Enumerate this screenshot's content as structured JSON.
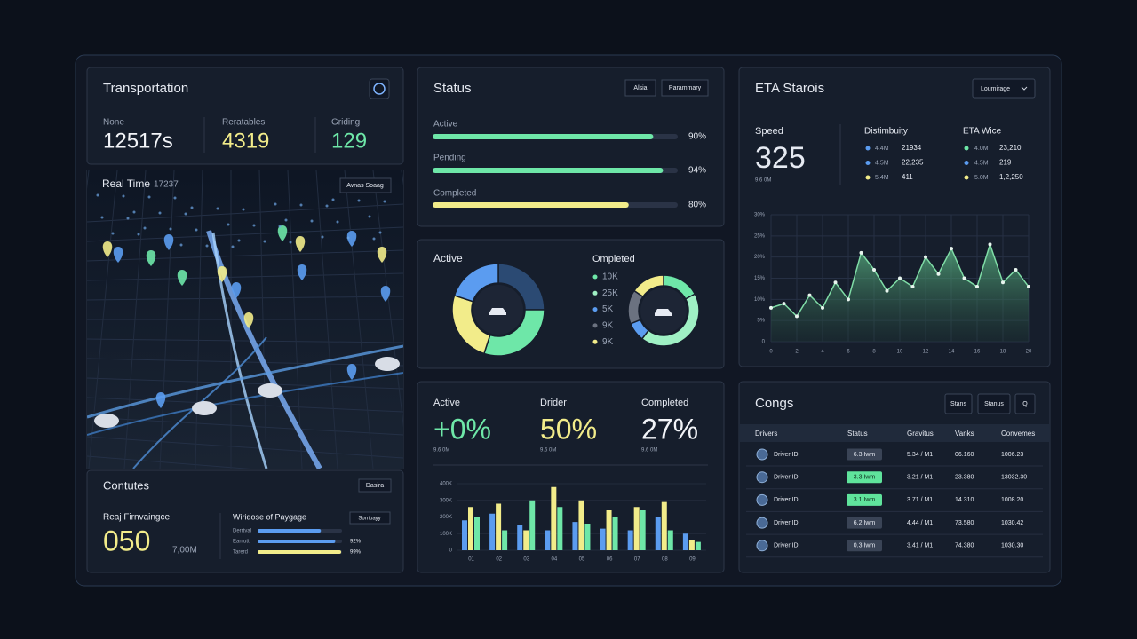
{
  "transport": {
    "title": "Transportation",
    "stats": [
      {
        "label": "None",
        "value": "12517s"
      },
      {
        "label": "Reratables",
        "value": "4319"
      },
      {
        "label": "Griding",
        "value": "129"
      }
    ]
  },
  "map": {
    "title": "Real Time",
    "value": "17237",
    "button": "Avnas Soaag"
  },
  "contutes": {
    "title": "Contutes",
    "button": "Dasira",
    "metric_label": "Reaj Firnvaingce",
    "metric": "050",
    "unit": "7,00M",
    "bars_title": "Wiridose of Paygage",
    "bars_button": "Sorribayy",
    "bars": {
      "type": "bar",
      "categories": [
        "Derrtval",
        "Eanlutt",
        "Tarerd"
      ],
      "values": [
        75,
        92,
        99
      ],
      "value_labels": [
        null,
        "92%",
        "99%"
      ],
      "colors": [
        "#5b9cf0",
        "#5b9cf0",
        "#f2ec8a"
      ],
      "xlim": [
        0,
        100
      ]
    }
  },
  "status": {
    "title": "Status",
    "buttons": [
      "Alsia",
      "Parammary"
    ],
    "bars": {
      "type": "bar",
      "categories": [
        "Active",
        "Pending",
        "Completed"
      ],
      "values": [
        90,
        94,
        80
      ],
      "value_labels": [
        "90%",
        "94%",
        "80%"
      ],
      "colors": [
        "#6ee7a8",
        "#6ee7a8",
        "#f2ec8a"
      ],
      "xlim": [
        0,
        100
      ]
    }
  },
  "donuts": [
    {
      "type": "pie",
      "title": "Active",
      "values": [
        25,
        30,
        25,
        20
      ],
      "colors": [
        "#2b4a73",
        "#6ee7a8",
        "#f2ec8a",
        "#5b9cf0"
      ]
    },
    {
      "type": "pie",
      "title": "Ompleted",
      "values": [
        10,
        25,
        5,
        9,
        9
      ],
      "value_labels": [
        "10K",
        "25K",
        "5K",
        "9K",
        "9K"
      ],
      "colors": [
        "#6ee7a8",
        "#9ff0c4",
        "#5b9cf0",
        "#6b7280",
        "#f2ec8a"
      ]
    }
  ],
  "kpis": [
    {
      "label": "Active",
      "value": "+0%",
      "sub": "9.6 0M",
      "color": "#6ee7a8"
    },
    {
      "label": "Drider",
      "value": "50%",
      "sub": "9.6 0M",
      "color": "#f2ec8a"
    },
    {
      "label": "Completed",
      "value": "27%",
      "sub": "9.6 0M",
      "color": "#f2f4f8"
    }
  ],
  "volume": {
    "type": "bar",
    "categories": [
      "01",
      "02",
      "03",
      "04",
      "05",
      "06",
      "07",
      "08",
      "09"
    ],
    "series": [
      {
        "color": "#5b9cf0",
        "values": [
          180,
          220,
          150,
          120,
          170,
          130,
          120,
          200,
          100
        ]
      },
      {
        "color": "#f2ec8a",
        "values": [
          260,
          280,
          120,
          380,
          300,
          240,
          260,
          290,
          60
        ]
      },
      {
        "color": "#6ee7a8",
        "values": [
          200,
          120,
          300,
          260,
          160,
          200,
          240,
          120,
          50
        ]
      }
    ],
    "ylim": [
      0,
      400
    ],
    "yticks": [
      0,
      {
        "value": 100,
        "label": "100K"
      },
      {
        "value": 200,
        "label": "200K"
      },
      {
        "value": 300,
        "label": "300K"
      },
      {
        "value": 400,
        "label": "400K"
      }
    ]
  },
  "eta": {
    "title": "ETA Starois",
    "dropdown": "Loumirage",
    "speed_label": "Speed",
    "speed": "325",
    "speed_sub": "9.6 0M",
    "dist_title": "Distimbuity",
    "dist": [
      {
        "key": "4.4M",
        "value": "21934",
        "color": "#5b9cf0"
      },
      {
        "key": "4.5M",
        "value": "22,235",
        "color": "#5b9cf0"
      },
      {
        "key": "5.4M",
        "value": "411",
        "color": "#f2ec8a"
      }
    ],
    "wice_title": "ETA Wice",
    "wice": [
      {
        "key": "4.0M",
        "value": "23,210",
        "color": "#6ee7a8"
      },
      {
        "key": "4.5M",
        "value": "219",
        "color": "#5b9cf0"
      },
      {
        "key": "5.0M",
        "value": "1,2,250",
        "color": "#f2ec8a"
      }
    ],
    "chart": {
      "type": "line",
      "x": [
        0,
        1,
        2,
        3,
        4,
        5,
        6,
        7,
        8,
        9,
        10,
        11,
        12,
        13,
        14,
        15,
        16,
        17,
        18,
        19,
        20
      ],
      "values": [
        8,
        9,
        6,
        11,
        8,
        14,
        10,
        21,
        17,
        12,
        15,
        13,
        20,
        16,
        22,
        15,
        13,
        23,
        14,
        17,
        13
      ],
      "color": "#7fdca6",
      "xlim": [
        0,
        20
      ],
      "xticks": [
        0,
        2,
        4,
        6,
        8,
        10,
        12,
        14,
        16,
        18,
        20
      ],
      "ylim": [
        0,
        30
      ],
      "yticks": [
        0,
        {
          "value": 5,
          "label": "5%"
        },
        {
          "value": 10,
          "label": "10%"
        },
        {
          "value": 15,
          "label": "15%"
        },
        {
          "value": 20,
          "label": "20%"
        },
        {
          "value": 25,
          "label": "25%"
        },
        {
          "value": 30,
          "label": "30%"
        }
      ],
      "grid": true
    }
  },
  "congs": {
    "title": "Congs",
    "buttons": [
      "Stans",
      "Stanus",
      "Q"
    ],
    "columns": [
      "Drivers",
      "Status",
      "Gravitus",
      "Vanks",
      "Convemes"
    ],
    "rows": [
      [
        "Driver ID",
        "6.3 Iwm",
        "5.34 / M1",
        "06.160",
        "1006.23"
      ],
      [
        "Driver ID",
        "3.3 Iwm",
        "3.21 / M1",
        "23.380",
        "13032.30"
      ],
      [
        "Driver ID",
        "3.1 Iwm",
        "3.71 / M1",
        "14.310",
        "1008.20"
      ],
      [
        "Driver ID",
        "6.2 Iwm",
        "4.44 / M1",
        "73.580",
        "1030.42"
      ],
      [
        "Driver ID",
        "0.3 Iwm",
        "3.41 / M1",
        "74.380",
        "1030.30"
      ]
    ],
    "status_colors": [
      "#3a4456",
      "#5fe39c",
      "#5fe39c",
      "#3a4456",
      "#3a4456"
    ]
  }
}
